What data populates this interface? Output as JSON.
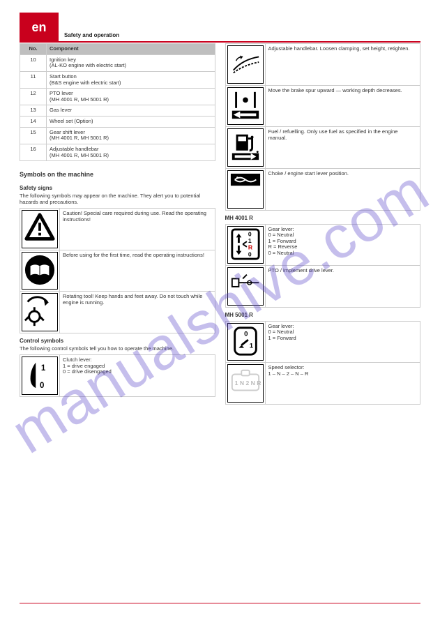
{
  "header": {
    "page_lang": "en",
    "title": "Safety and operation"
  },
  "equip_table": {
    "headers": [
      "No.",
      "Component"
    ],
    "rows": [
      [
        "10",
        "Ignition key\\n(AL-KO engine with electric start)"
      ],
      [
        "11",
        "Start button\\n(B&S engine with electric start)"
      ],
      [
        "12",
        "PTO lever\\n(MH 4001 R, MH 5001 R)"
      ],
      [
        "13",
        "Gas lever"
      ],
      [
        "14",
        "Wheel set (Option)"
      ],
      [
        "15",
        "Gear shift lever\\n(MH 4001 R, MH 5001 R)"
      ],
      [
        "16",
        "Adjustable handlebar\\n(MH 4001 R, MH 5001 R)"
      ]
    ]
  },
  "sym_section": {
    "title": "Symbols on the machine",
    "sub1": "Safety signs",
    "intro": "The following symbols may appear on the machine. They alert you to potential hazards and precautions."
  },
  "sym_left_1": [
    {
      "icon": "warn-triangle",
      "text": "Caution! Special care required during use. Read the operating instructions!"
    },
    {
      "icon": "manual-book",
      "text": "Before using for the first time, read the operating instructions!"
    },
    {
      "icon": "rotating-tool",
      "text": "Rotating tool! Keep hands and feet away. Do not touch while engine is running."
    }
  ],
  "sym_left_2_title": "Control symbols",
  "sym_left_2_intro": "The following control symbols tell you how to operate the machine.",
  "sym_left_2": [
    {
      "icon": "clutch-10",
      "text": "Clutch lever:\\n1 = drive engaged\\n0 = drive disengaged"
    }
  ],
  "sym_right_1": [
    {
      "icon": "handlebar",
      "text": "Adjustable handlebar. Loosen clamping, set height, retighten."
    },
    {
      "icon": "depth-left",
      "text": "Move the brake spur upward — working depth decreases."
    },
    {
      "icon": "fuel-pump",
      "text": "Fuel / refuelling. Only use fuel as specified in the engine manual."
    },
    {
      "icon": "choke-lever",
      "text": "Choke / engine start lever position."
    }
  ],
  "sym_right_2_title": "MH 4001 R",
  "sym_right_2": [
    {
      "icon": "gear-01R0",
      "text": "Gear lever:\\n0 = Neutral\\n1 = Forward\\nR = Reverse\\n0 = Neutral"
    },
    {
      "icon": "pto-cable",
      "text": "PTO / implement drive lever."
    }
  ],
  "sym_right_3_title": "MH 5001 R",
  "sym_right_3": [
    {
      "icon": "gear-01",
      "text": "Gear lever:\\n0 = Neutral\\n1 = Forward"
    },
    {
      "icon": "gear-1N2NR",
      "text": "Speed selector:\\n1 – N – 2 – N – R"
    }
  ],
  "watermark": "manualshive.com",
  "colors": {
    "brand_red": "#c9001d",
    "grid": "#cccccc",
    "header_grey": "#bfbfbf",
    "wm": "rgba(90,70,200,0.35)"
  }
}
